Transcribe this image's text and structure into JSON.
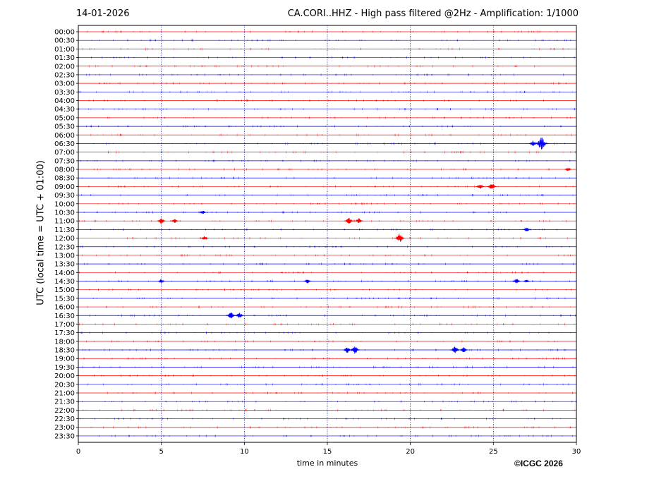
{
  "header": {
    "date": "14-01-2026",
    "title": "CA.CORI..HHZ - High pass filtered @2Hz - Amplification: 1/1000"
  },
  "footer": {
    "copyright": "©ICGC 2026"
  },
  "colors": {
    "red_trace": "#ff0000",
    "blue_trace": "#0000ff",
    "grid": "#00008b"
  },
  "chart_data": {
    "type": "line",
    "xlabel": "time in minutes",
    "ylabel": "UTC (local time = UTC + 01:00)",
    "xlim": [
      0,
      30
    ],
    "xticks": [
      0,
      5,
      10,
      15,
      20,
      25,
      30
    ],
    "grid": "vertical dotted at x ticks",
    "row_labels": [
      "00:00",
      "00:30",
      "01:00",
      "01:30",
      "02:00",
      "02:30",
      "03:00",
      "03:30",
      "04:00",
      "04:30",
      "05:00",
      "05:30",
      "06:00",
      "06:30",
      "07:00",
      "07:30",
      "08:00",
      "08:30",
      "09:00",
      "09:30",
      "10:00",
      "10:30",
      "11:00",
      "11:30",
      "12:00",
      "12:30",
      "13:00",
      "13:30",
      "14:00",
      "14:30",
      "15:00",
      "15:30",
      "16:00",
      "16:30",
      "17:00",
      "17:30",
      "18:00",
      "18:30",
      "19:00",
      "19:30",
      "20:00",
      "20:30",
      "21:00",
      "21:30",
      "22:00",
      "22:30",
      "23:00",
      "23:30"
    ],
    "trace_colors_alternate": [
      "red",
      "blue"
    ],
    "events": [
      {
        "row": "06:30",
        "minute": 27.9,
        "amplitude": 1.0
      },
      {
        "row": "06:30",
        "minute": 27.4,
        "amplitude": 0.45
      },
      {
        "row": "08:00",
        "minute": 29.5,
        "amplitude": 0.3
      },
      {
        "row": "09:00",
        "minute": 24.2,
        "amplitude": 0.45
      },
      {
        "row": "09:00",
        "minute": 24.9,
        "amplitude": 0.55
      },
      {
        "row": "10:30",
        "minute": 7.5,
        "amplitude": 0.3
      },
      {
        "row": "11:00",
        "minute": 5.0,
        "amplitude": 0.45
      },
      {
        "row": "11:00",
        "minute": 5.8,
        "amplitude": 0.35
      },
      {
        "row": "11:00",
        "minute": 16.3,
        "amplitude": 0.55
      },
      {
        "row": "11:00",
        "minute": 16.9,
        "amplitude": 0.45
      },
      {
        "row": "11:30",
        "minute": 27.0,
        "amplitude": 0.35
      },
      {
        "row": "12:00",
        "minute": 7.6,
        "amplitude": 0.35
      },
      {
        "row": "12:00",
        "minute": 19.35,
        "amplitude": 0.7
      },
      {
        "row": "14:30",
        "minute": 5.0,
        "amplitude": 0.3
      },
      {
        "row": "14:30",
        "minute": 13.8,
        "amplitude": 0.35
      },
      {
        "row": "14:30",
        "minute": 26.4,
        "amplitude": 0.4
      },
      {
        "row": "14:30",
        "minute": 27.0,
        "amplitude": 0.25
      },
      {
        "row": "16:30",
        "minute": 9.2,
        "amplitude": 0.55
      },
      {
        "row": "16:30",
        "minute": 9.7,
        "amplitude": 0.45
      },
      {
        "row": "18:30",
        "minute": 16.2,
        "amplitude": 0.45
      },
      {
        "row": "18:30",
        "minute": 16.65,
        "amplitude": 0.65
      },
      {
        "row": "18:30",
        "minute": 22.7,
        "amplitude": 0.6
      },
      {
        "row": "18:30",
        "minute": 23.2,
        "amplitude": 0.45
      }
    ]
  }
}
